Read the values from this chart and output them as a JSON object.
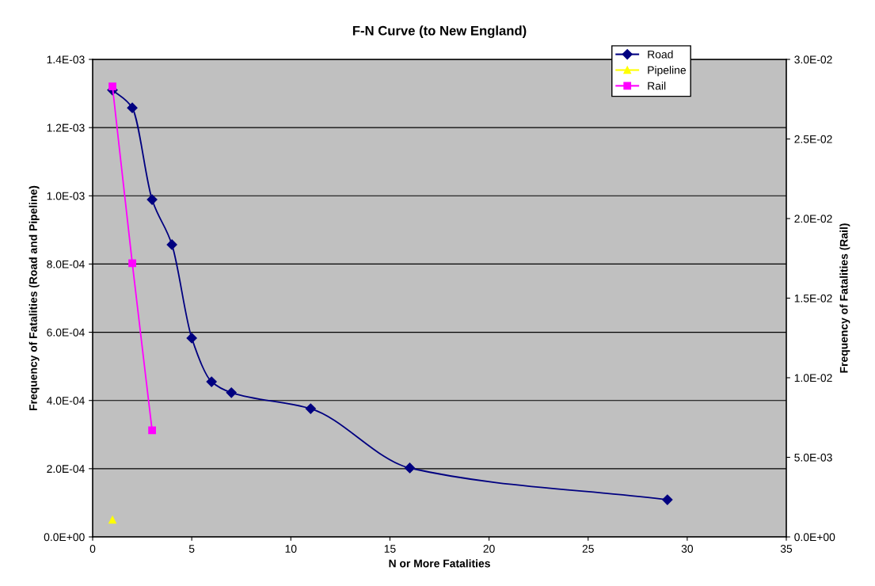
{
  "chart_data": {
    "type": "line",
    "title": "F-N Curve (to New England)",
    "xlabel": "N or More Fatalities",
    "ylabel": "Frequency of Fatalities (Road and Pipeline)",
    "y2label": "Frequency of Fatalities (Rail)",
    "xlim": [
      0,
      35
    ],
    "xticks": [
      0,
      5,
      10,
      15,
      20,
      25,
      30,
      35
    ],
    "ylim": [
      0,
      0.0014
    ],
    "yticks": [
      {
        "value": 0,
        "label": "0.0E+00"
      },
      {
        "value": 0.0002,
        "label": "2.0E-04"
      },
      {
        "value": 0.0004,
        "label": "4.0E-04"
      },
      {
        "value": 0.0006,
        "label": "6.0E-04"
      },
      {
        "value": 0.0008,
        "label": "8.0E-04"
      },
      {
        "value": 0.001,
        "label": "1.0E-03"
      },
      {
        "value": 0.0012,
        "label": "1.2E-03"
      },
      {
        "value": 0.0014,
        "label": "1.4E-03"
      }
    ],
    "y2lim": [
      0,
      0.03
    ],
    "y2ticks": [
      {
        "value": 0,
        "label": "0.0E+00"
      },
      {
        "value": 0.005,
        "label": "5.0E-03"
      },
      {
        "value": 0.01,
        "label": "1.0E-02"
      },
      {
        "value": 0.015,
        "label": "1.5E-02"
      },
      {
        "value": 0.02,
        "label": "2.0E-02"
      },
      {
        "value": 0.025,
        "label": "2.5E-02"
      },
      {
        "value": 0.03,
        "label": "3.0E-02"
      }
    ],
    "grid": "y",
    "legend": "top right",
    "series": [
      {
        "name": "Road",
        "color": "#000080",
        "marker": "diamond",
        "x": [
          1,
          2,
          3,
          4,
          5,
          6,
          7,
          11,
          16,
          29
        ],
        "values": [
          0.00131,
          0.001258,
          0.000989,
          0.000857,
          0.000583,
          0.000455,
          0.000423,
          0.000376,
          0.000202,
          0.000109
        ]
      },
      {
        "name": "Pipeline",
        "color": "#ffff00",
        "marker": "triangle",
        "x": [
          1
        ],
        "values": [
          5e-05
        ]
      },
      {
        "name": "Rail",
        "color": "#ff00ff",
        "marker": "square",
        "axis": "y2",
        "x": [
          1,
          2,
          3
        ],
        "values": [
          0.0283,
          0.0172,
          0.0067
        ]
      }
    ]
  }
}
